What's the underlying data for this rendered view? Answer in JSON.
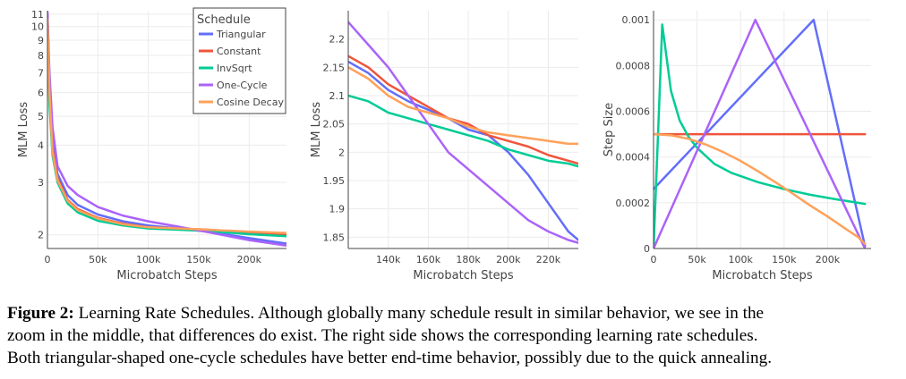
{
  "colors": {
    "Triangular": "#636efa",
    "Constant": "#ef553b",
    "InvSqrt": "#00cc96",
    "One-Cycle": "#ab63fa",
    "Cosine Decay": "#ffa15a"
  },
  "legend": {
    "title": "Schedule",
    "items": [
      "Triangular",
      "Constant",
      "InvSqrt",
      "One-Cycle",
      "Cosine Decay"
    ]
  },
  "caption": {
    "label": "Figure 2:",
    "line1": " Learning Rate Schedules. Although globally many schedule result in similar behavior, we see in the",
    "line2": "zoom in the middle, that differences do exist. The right side shows the corresponding learning rate schedules.",
    "line3": "Both triangular-shaped one-cycle schedules have better end-time behavior, possibly due to the quick annealing."
  },
  "chart_data": [
    {
      "type": "line",
      "title": "",
      "xlabel": "Microbatch Steps",
      "ylabel": "MLM Loss",
      "yscale": "log",
      "xlim": [
        0,
        237000
      ],
      "ylim": [
        1.8,
        11.3
      ],
      "xticks": [
        0,
        50000,
        100000,
        150000,
        200000
      ],
      "xtick_labels": [
        "0",
        "50k",
        "100k",
        "150k",
        "200k"
      ],
      "yticks": [
        2,
        3,
        4,
        5,
        6,
        7,
        8,
        9,
        10,
        11
      ],
      "ytick_labels": [
        "2",
        "3",
        "4",
        "5",
        "6",
        "7",
        "8",
        "9",
        "10",
        "11"
      ],
      "x": [
        0,
        2000,
        5000,
        10000,
        20000,
        30000,
        50000,
        75000,
        100000,
        130000,
        160000,
        200000,
        237000
      ],
      "series": [
        {
          "name": "Triangular",
          "values": [
            11.0,
            6.5,
            4.1,
            3.2,
            2.72,
            2.52,
            2.34,
            2.22,
            2.15,
            2.1,
            2.05,
            1.95,
            1.87
          ]
        },
        {
          "name": "Constant",
          "values": [
            10.8,
            6.2,
            3.9,
            3.1,
            2.62,
            2.44,
            2.28,
            2.18,
            2.12,
            2.1,
            2.08,
            2.03,
            2.0
          ]
        },
        {
          "name": "InvSqrt",
          "values": [
            10.5,
            5.5,
            3.7,
            3.0,
            2.55,
            2.38,
            2.23,
            2.15,
            2.1,
            2.08,
            2.06,
            2.01,
            1.98
          ]
        },
        {
          "name": "One-Cycle",
          "values": [
            11.2,
            7.0,
            4.6,
            3.4,
            2.92,
            2.72,
            2.48,
            2.32,
            2.22,
            2.13,
            2.04,
            1.92,
            1.84
          ]
        },
        {
          "name": "Cosine Decay",
          "values": [
            10.6,
            6.0,
            3.8,
            3.05,
            2.6,
            2.42,
            2.27,
            2.17,
            2.12,
            2.1,
            2.08,
            2.05,
            2.03
          ]
        }
      ],
      "legend_position": "top-right"
    },
    {
      "type": "line",
      "title": "",
      "xlabel": "Microbatch Steps",
      "ylabel": "MLM Loss",
      "xlim": [
        120000,
        235000
      ],
      "ylim": [
        1.83,
        2.25
      ],
      "xticks": [
        140000,
        160000,
        180000,
        200000,
        220000
      ],
      "xtick_labels": [
        "140k",
        "160k",
        "180k",
        "200k",
        "220k"
      ],
      "yticks": [
        1.85,
        1.9,
        1.95,
        2,
        2.05,
        2.1,
        2.15,
        2.2
      ],
      "ytick_labels": [
        "1.85",
        "1.9",
        "1.95",
        "2",
        "2.05",
        "2.1",
        "2.15",
        "2.2"
      ],
      "x": [
        120000,
        130000,
        140000,
        150000,
        160000,
        170000,
        180000,
        190000,
        200000,
        210000,
        220000,
        230000,
        235000
      ],
      "series": [
        {
          "name": "Triangular",
          "values": [
            2.16,
            2.14,
            2.11,
            2.09,
            2.075,
            2.06,
            2.04,
            2.03,
            2.0,
            1.96,
            1.91,
            1.86,
            1.845
          ]
        },
        {
          "name": "Constant",
          "values": [
            2.17,
            2.15,
            2.12,
            2.1,
            2.08,
            2.06,
            2.05,
            2.03,
            2.02,
            2.01,
            1.995,
            1.985,
            1.98
          ]
        },
        {
          "name": "InvSqrt",
          "values": [
            2.1,
            2.09,
            2.07,
            2.06,
            2.05,
            2.04,
            2.03,
            2.02,
            2.005,
            1.995,
            1.985,
            1.98,
            1.975
          ]
        },
        {
          "name": "One-Cycle",
          "values": [
            2.23,
            2.19,
            2.15,
            2.1,
            2.05,
            2.0,
            1.97,
            1.94,
            1.91,
            1.88,
            1.86,
            1.845,
            1.84
          ]
        },
        {
          "name": "Cosine Decay",
          "values": [
            2.15,
            2.13,
            2.1,
            2.08,
            2.07,
            2.06,
            2.045,
            2.035,
            2.03,
            2.025,
            2.02,
            2.015,
            2.015
          ]
        }
      ]
    },
    {
      "type": "line",
      "title": "",
      "xlabel": "Microbatch Steps",
      "ylabel": "Step Size",
      "xlim": [
        0,
        250000
      ],
      "ylim": [
        0,
        0.00104
      ],
      "xticks": [
        0,
        50000,
        100000,
        150000,
        200000
      ],
      "xtick_labels": [
        "0",
        "50k",
        "100k",
        "150k",
        "200k"
      ],
      "yticks": [
        0,
        0.0002,
        0.0004,
        0.0006,
        0.0008,
        0.001
      ],
      "ytick_labels": [
        "0",
        "0.0002",
        "0.0004",
        "0.0006",
        "0.0008",
        "0.001"
      ],
      "series": [
        {
          "name": "Triangular",
          "x": [
            0,
            184000,
            243000
          ],
          "values": [
            0.00026,
            0.001,
            1e-05
          ]
        },
        {
          "name": "Constant",
          "x": [
            0,
            243000
          ],
          "values": [
            0.0005,
            0.0005
          ]
        },
        {
          "name": "InvSqrt",
          "x": [
            0,
            6000,
            10000,
            20000,
            30000,
            40000,
            50000,
            70000,
            90000,
            120000,
            150000,
            180000,
            210000,
            243000
          ],
          "values": [
            0,
            0.00058,
            0.00098,
            0.00069,
            0.00056,
            0.00049,
            0.00044,
            0.00037,
            0.00033,
            0.00029,
            0.00026,
            0.000235,
            0.000215,
            0.000195
          ]
        },
        {
          "name": "One-Cycle",
          "x": [
            0,
            117000,
            243000
          ],
          "values": [
            0,
            0.001,
            0
          ]
        },
        {
          "name": "Cosine Decay",
          "x": [
            0,
            20000,
            40000,
            60000,
            80000,
            100000,
            120000,
            140000,
            160000,
            180000,
            200000,
            220000,
            235000,
            243000
          ],
          "values": [
            0.0005,
            0.000495,
            0.00048,
            0.000455,
            0.000422,
            0.000383,
            0.000338,
            0.00029,
            0.00024,
            0.000188,
            0.00014,
            8.8e-05,
            5e-05,
            2e-05
          ]
        }
      ]
    }
  ]
}
